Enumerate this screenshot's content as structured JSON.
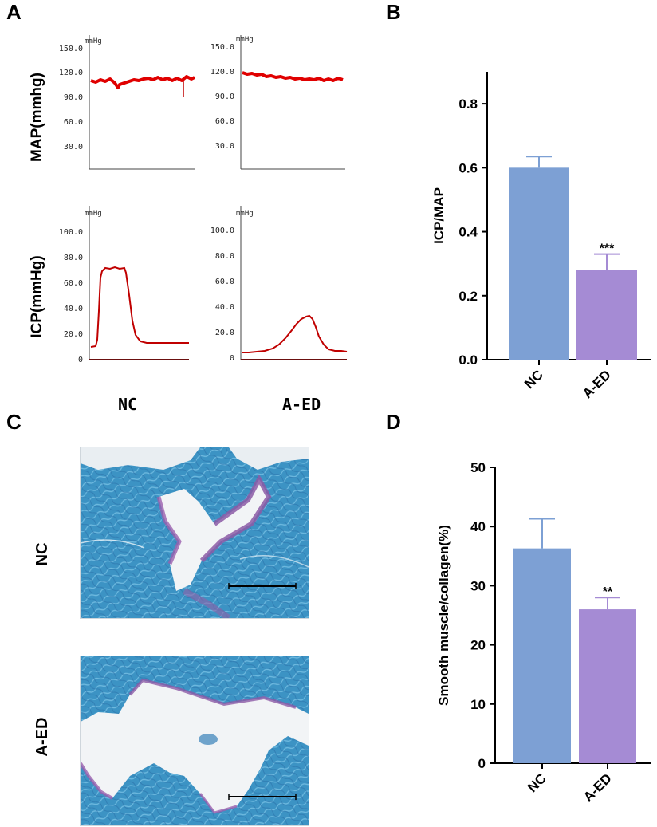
{
  "panels": {
    "a": "A",
    "b": "B",
    "c": "C",
    "d": "D"
  },
  "panel_a": {
    "row_labels": {
      "map": "MAP(mmhg)",
      "icp": "ICP(mmHg)"
    },
    "column_labels": [
      "NC",
      "A-ED"
    ],
    "unit": "mmHg",
    "map_ticks": [
      "150.0",
      "120.0",
      "90.0",
      "60.0",
      "30.0"
    ],
    "icp_ticks": [
      "100.0",
      "80.0",
      "60.0",
      "40.0",
      "20.0",
      "0"
    ],
    "trace_color": "#e00000"
  },
  "panel_c": {
    "row_labels": [
      "NC",
      "A-ED"
    ]
  },
  "chart_data": [
    {
      "type": "bar",
      "panel": "B",
      "categories": [
        "NC",
        "A-ED"
      ],
      "values": [
        0.6,
        0.28
      ],
      "errors": [
        0.035,
        0.05
      ],
      "colors": [
        "#7da0d4",
        "#a58bd4"
      ],
      "significance": [
        "",
        "***"
      ],
      "ylabel": "ICP/MAP",
      "ylim": [
        0,
        0.9
      ],
      "yticks": [
        "0.0",
        "0.2",
        "0.4",
        "0.6",
        "0.8"
      ]
    },
    {
      "type": "bar",
      "panel": "D",
      "categories": [
        "NC",
        "A-ED"
      ],
      "values": [
        36.3,
        26.0
      ],
      "errors": [
        5.0,
        2.0
      ],
      "colors": [
        "#7da0d4",
        "#a58bd4"
      ],
      "significance": [
        "",
        "**"
      ],
      "ylabel": "Smooth muscle/collagen(%)",
      "ylim": [
        0,
        50
      ],
      "yticks": [
        "0",
        "10",
        "20",
        "30",
        "40",
        "50"
      ]
    }
  ]
}
